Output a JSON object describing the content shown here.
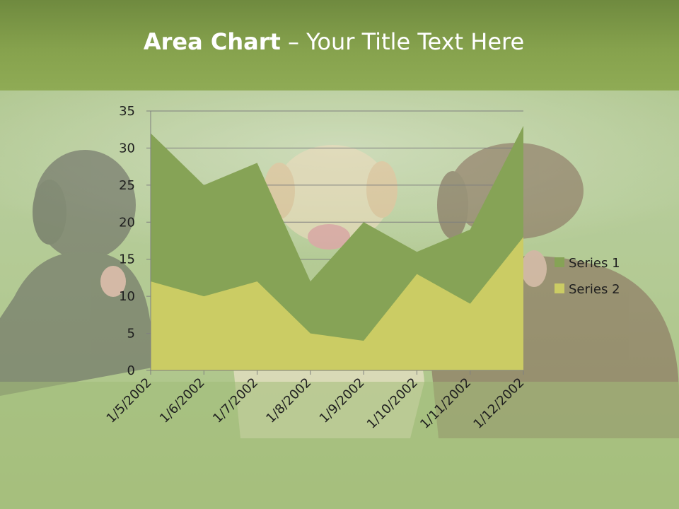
{
  "slide": {
    "title_bold": "Area Chart",
    "title_rest": " – Your Title Text Here"
  },
  "colors": {
    "series1": "#86a356",
    "series2": "#cbcc64",
    "grid": "#7f7f7f",
    "axis_text": "#1e1e1e"
  },
  "chart_data": {
    "type": "area",
    "stacked": false,
    "title": "",
    "xlabel": "",
    "ylabel": "",
    "categories": [
      "1/5/2002",
      "1/6/2002",
      "1/7/2002",
      "1/8/2002",
      "1/9/2002",
      "1/10/2002",
      "1/11/2002",
      "1/12/2002"
    ],
    "series": [
      {
        "name": "Series 1",
        "values": [
          32,
          25,
          28,
          12,
          20,
          16,
          19,
          33
        ]
      },
      {
        "name": "Series 2",
        "values": [
          12,
          10,
          12,
          5,
          4,
          13,
          9,
          18
        ]
      }
    ],
    "ylim": [
      0,
      35
    ],
    "yticks": [
      0,
      5,
      10,
      15,
      20,
      25,
      30,
      35
    ],
    "grid": true,
    "legend": "right"
  }
}
